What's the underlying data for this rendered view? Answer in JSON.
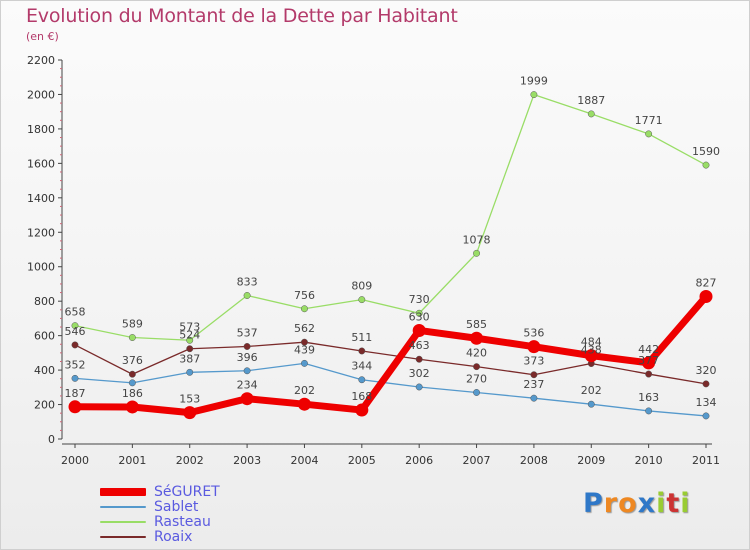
{
  "title": "Evolution du Montant de la Dette par Habitant",
  "subtitle": "(en €)",
  "chart_data": {
    "type": "line",
    "title": "Evolution du Montant de la Dette par Habitant",
    "subtitle": "(en €)",
    "xlabel": "",
    "ylabel": "",
    "x": [
      "2000",
      "2001",
      "2002",
      "2003",
      "2004",
      "2005",
      "2006",
      "2007",
      "2008",
      "2009",
      "2010",
      "2011"
    ],
    "ylim": [
      0,
      2200
    ],
    "yticks": [
      0,
      200,
      400,
      600,
      800,
      1000,
      1200,
      1400,
      1600,
      1800,
      2000,
      2200
    ],
    "grid": false,
    "legend_position": "bottom-left",
    "series": [
      {
        "name": "Roaix",
        "color": "#7a2a2a",
        "values": [
          546,
          376,
          524,
          537,
          562,
          511,
          463,
          420,
          373,
          438,
          377,
          320
        ],
        "labels": [
          "546",
          "376",
          "524",
          "537",
          "562",
          "511",
          "463",
          "420",
          "373",
          "438",
          "377",
          "320"
        ]
      },
      {
        "name": "Rasteau",
        "color": "#99dd66",
        "values": [
          658,
          589,
          573,
          833,
          756,
          809,
          730,
          1078,
          1999,
          1887,
          1771,
          1590
        ],
        "labels": [
          "658",
          "589",
          "573",
          "833",
          "756",
          "809",
          "730",
          "1078",
          "1999",
          "1887",
          "1771",
          "1590"
        ]
      },
      {
        "name": "Sablet",
        "color": "#5599cc",
        "values": [
          352,
          326,
          387,
          396,
          439,
          344,
          302,
          270,
          237,
          202,
          163,
          134
        ],
        "labels": [
          "352",
          "",
          "387",
          "396",
          "439",
          "344",
          "302",
          "270",
          "237",
          "202",
          "163",
          "134"
        ]
      },
      {
        "name": "SéGURET",
        "color": "#ee0000",
        "values": [
          187,
          186,
          153,
          234,
          202,
          168,
          630,
          585,
          536,
          484,
          442,
          827
        ],
        "labels": [
          "187",
          "186",
          "153",
          "234",
          "202",
          "168",
          "630",
          "585",
          "536",
          "484",
          "442",
          "827"
        ]
      }
    ],
    "legend_order": [
      "SéGURET",
      "Sablet",
      "Rasteau",
      "Roaix"
    ]
  },
  "logo": {
    "letters": [
      {
        "ch": "P",
        "color": "#2f78c8"
      },
      {
        "ch": "r",
        "color": "#ee8822"
      },
      {
        "ch": "o",
        "color": "#ee8822"
      },
      {
        "ch": "x",
        "color": "#2f78c8"
      },
      {
        "ch": "i",
        "color": "#99cc33"
      },
      {
        "ch": "t",
        "color": "#cc3333"
      },
      {
        "ch": "i",
        "color": "#99cc33"
      }
    ]
  }
}
